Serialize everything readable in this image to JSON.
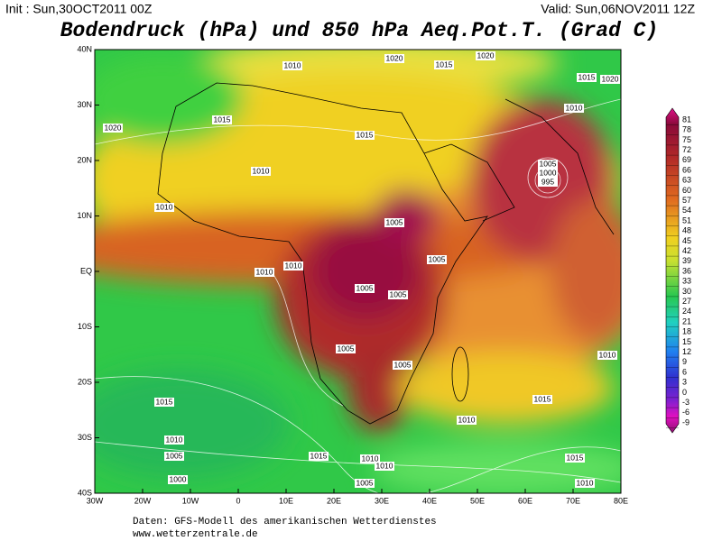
{
  "header": {
    "init": "Init : Sun,30OCT2011 00Z",
    "valid": "Valid: Sun,06NOV2011 12Z",
    "title": "Bodendruck (hPa) und 850 hPa Aeq.Pot.T. (Grad C)"
  },
  "map": {
    "lat_labels": [
      "40N",
      "30N",
      "20N",
      "10N",
      "EQ",
      "10S",
      "20S",
      "30S",
      "40S"
    ],
    "lon_labels": [
      "30W",
      "20W",
      "10W",
      "0",
      "10E",
      "20E",
      "30E",
      "40E",
      "50E",
      "60E",
      "70E",
      "80E"
    ],
    "isobar_labels": [
      1010,
      1020,
      1015,
      1020,
      1015,
      1020,
      1010,
      1015,
      1020,
      1015,
      1010,
      1005,
      1000,
      995,
      1010,
      1005,
      1005,
      1010,
      1010,
      1005,
      1005,
      1005,
      1005,
      1010,
      1015,
      1010,
      1015,
      1010,
      1005,
      1015,
      1010,
      1010,
      1015,
      1010,
      1000,
      1005
    ]
  },
  "colorbar": {
    "labels": [
      81,
      78,
      75,
      72,
      69,
      66,
      63,
      60,
      57,
      54,
      51,
      48,
      45,
      42,
      39,
      36,
      33,
      30,
      27,
      24,
      21,
      18,
      15,
      12,
      9,
      6,
      3,
      0,
      -3,
      -6,
      -9
    ]
  },
  "footer": {
    "source": "Daten: GFS-Modell des amerikanischen Wetterdienstes",
    "url": "www.wetterzentrale.de"
  }
}
